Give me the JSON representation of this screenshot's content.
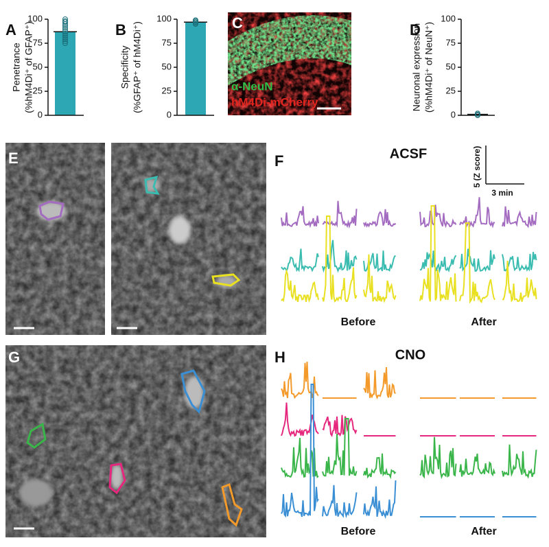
{
  "chart_data": [
    {
      "type": "bar",
      "panel": "A",
      "ylabel": [
        "Penetrance",
        "(%hM4Di⁺ of GFAP⁺)"
      ],
      "values": [
        87
      ],
      "points": [
        100,
        98,
        97,
        95,
        93,
        91,
        89,
        87,
        85,
        83,
        81,
        79,
        77,
        75
      ],
      "color": "#2ea7b5",
      "ylim": [
        0,
        100
      ],
      "yticks": [
        0,
        25,
        50,
        75,
        100
      ]
    },
    {
      "type": "bar",
      "panel": "B",
      "ylabel": [
        "Specificity",
        "(%GFAP⁺ of hM4Di⁺)"
      ],
      "values": [
        97
      ],
      "points": [
        99,
        98,
        97,
        96,
        95
      ],
      "color": "#2ea7b5",
      "ylim": [
        0,
        100
      ],
      "yticks": [
        0,
        25,
        50,
        75,
        100
      ]
    },
    {
      "type": "bar",
      "panel": "D",
      "ylabel": [
        "Neuronal expression",
        "(%hM4Di⁺ of NeuN⁺)"
      ],
      "values": [
        1
      ],
      "points": [
        0,
        1,
        2
      ],
      "color": "#2ea7b5",
      "ylim": [
        0,
        100
      ],
      "yticks": [
        0,
        25,
        50,
        75,
        100
      ]
    }
  ],
  "panel_c": {
    "panel": "C",
    "labels": [
      "α-NeuN",
      "hM4Di-mCherry"
    ]
  },
  "panel_e": {
    "panel": "E"
  },
  "panel_g": {
    "panel": "G"
  },
  "panel_f": {
    "panel": "F",
    "title": "ACSF",
    "scale_y": "5 (Z score)",
    "scale_x": "3 min",
    "conditions": [
      "Before",
      "After"
    ]
  },
  "panel_h": {
    "panel": "H",
    "title": "CNO",
    "conditions": [
      "Before",
      "After"
    ]
  }
}
